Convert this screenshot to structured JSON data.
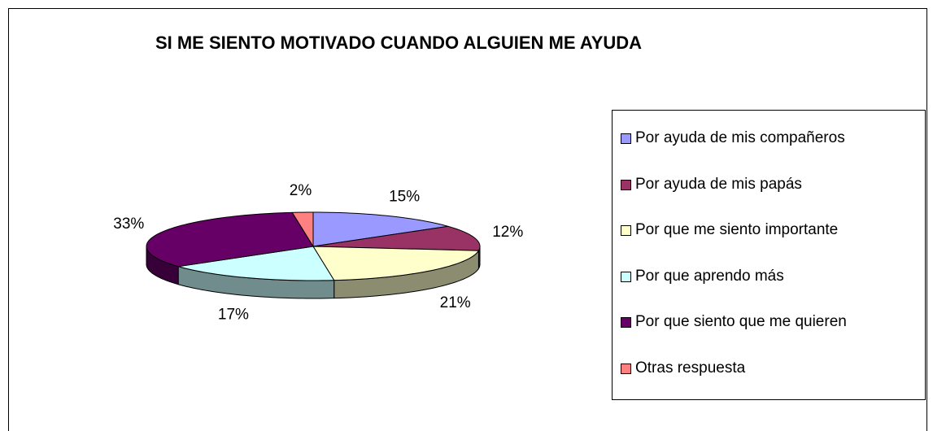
{
  "chart_data": {
    "type": "pie",
    "title": "SI ME SIENTO MOTIVADO CUANDO ALGUIEN ME AYUDA",
    "categories": [
      "Por ayuda de mis compañeros",
      "Por ayuda de mis papás",
      "Por que me siento importante",
      "Por que aprendo más",
      "Por que siento que me quieren",
      "Otras respuesta"
    ],
    "values": [
      15,
      12,
      21,
      17,
      33,
      2
    ],
    "value_labels": [
      "15%",
      "12%",
      "21%",
      "17%",
      "33%",
      "2%"
    ],
    "colors": [
      "#9999ff",
      "#993366",
      "#ffffcc",
      "#ccffff",
      "#660066",
      "#ff8080"
    ],
    "legend": "right"
  }
}
